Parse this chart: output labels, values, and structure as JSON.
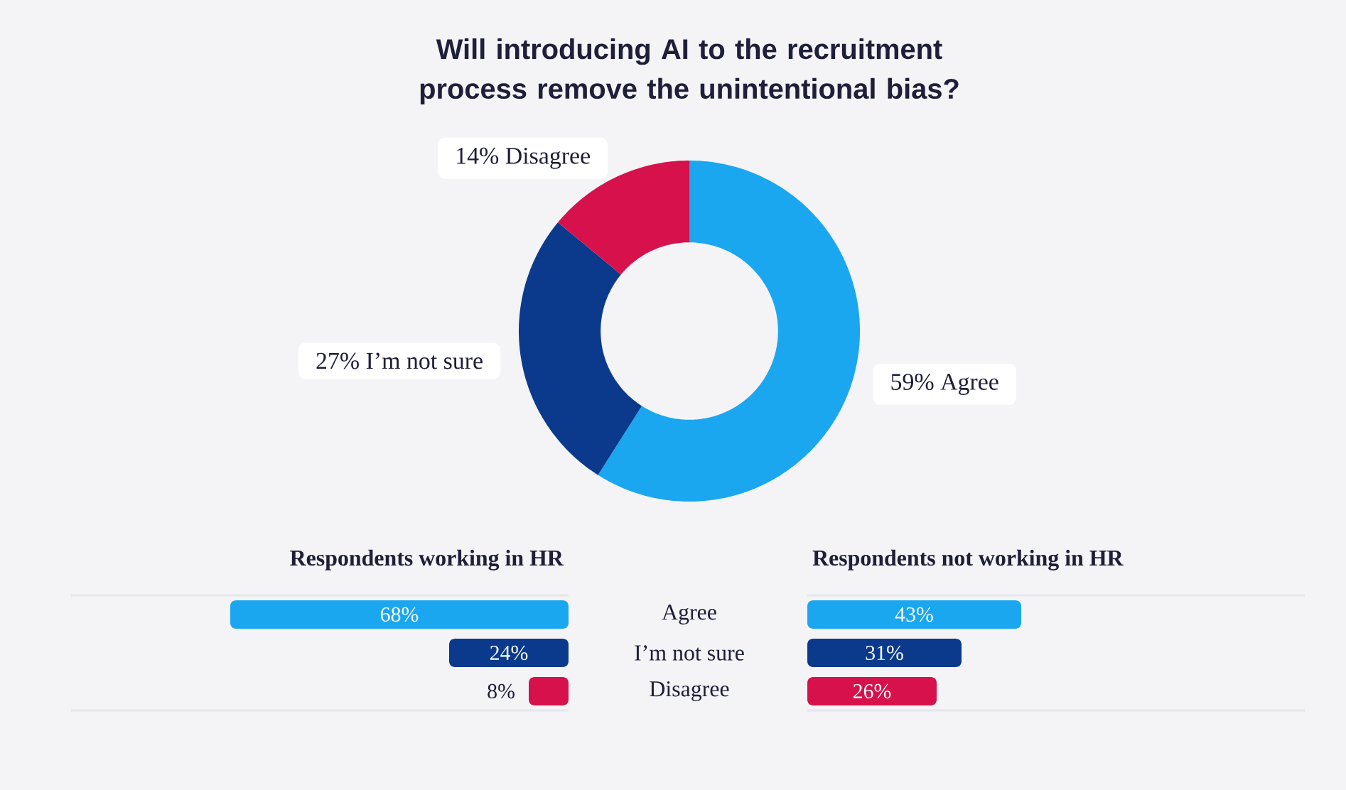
{
  "chart_data": [
    {
      "type": "donut",
      "title": "Will introducing AI to the recruitment process remove the unintentional bias?",
      "categories": [
        "Agree",
        "I’m not sure",
        "Disagree"
      ],
      "values": [
        59,
        27,
        14
      ],
      "colors": [
        "#1aa7f0",
        "#0b3a8c",
        "#d6114b"
      ],
      "value_labels": [
        "59%",
        "27%",
        "14%"
      ]
    },
    {
      "type": "bar",
      "orientation": "horizontal",
      "title": "Respondents working in HR",
      "categories": [
        "Agree",
        "I’m not sure",
        "Disagree"
      ],
      "values": [
        68,
        24,
        8
      ],
      "colors": [
        "#1aa7f0",
        "#0b3a8c",
        "#d6114b"
      ],
      "xlim": [
        100,
        0
      ],
      "value_labels": [
        "68%",
        "24%",
        "8%"
      ],
      "tick_labels": "y"
    },
    {
      "type": "bar",
      "orientation": "horizontal",
      "title": "Respondents not working in HR",
      "categories": [
        null,
        null,
        null
      ],
      "values": [
        43,
        31,
        26
      ],
      "colors": [
        "#1aa7f0",
        "#0b3a8c",
        "#d6114b"
      ],
      "xlim": [
        0,
        100
      ],
      "value_labels": [
        "43%",
        "31%",
        "26%"
      ],
      "tick_labels": false
    }
  ]
}
